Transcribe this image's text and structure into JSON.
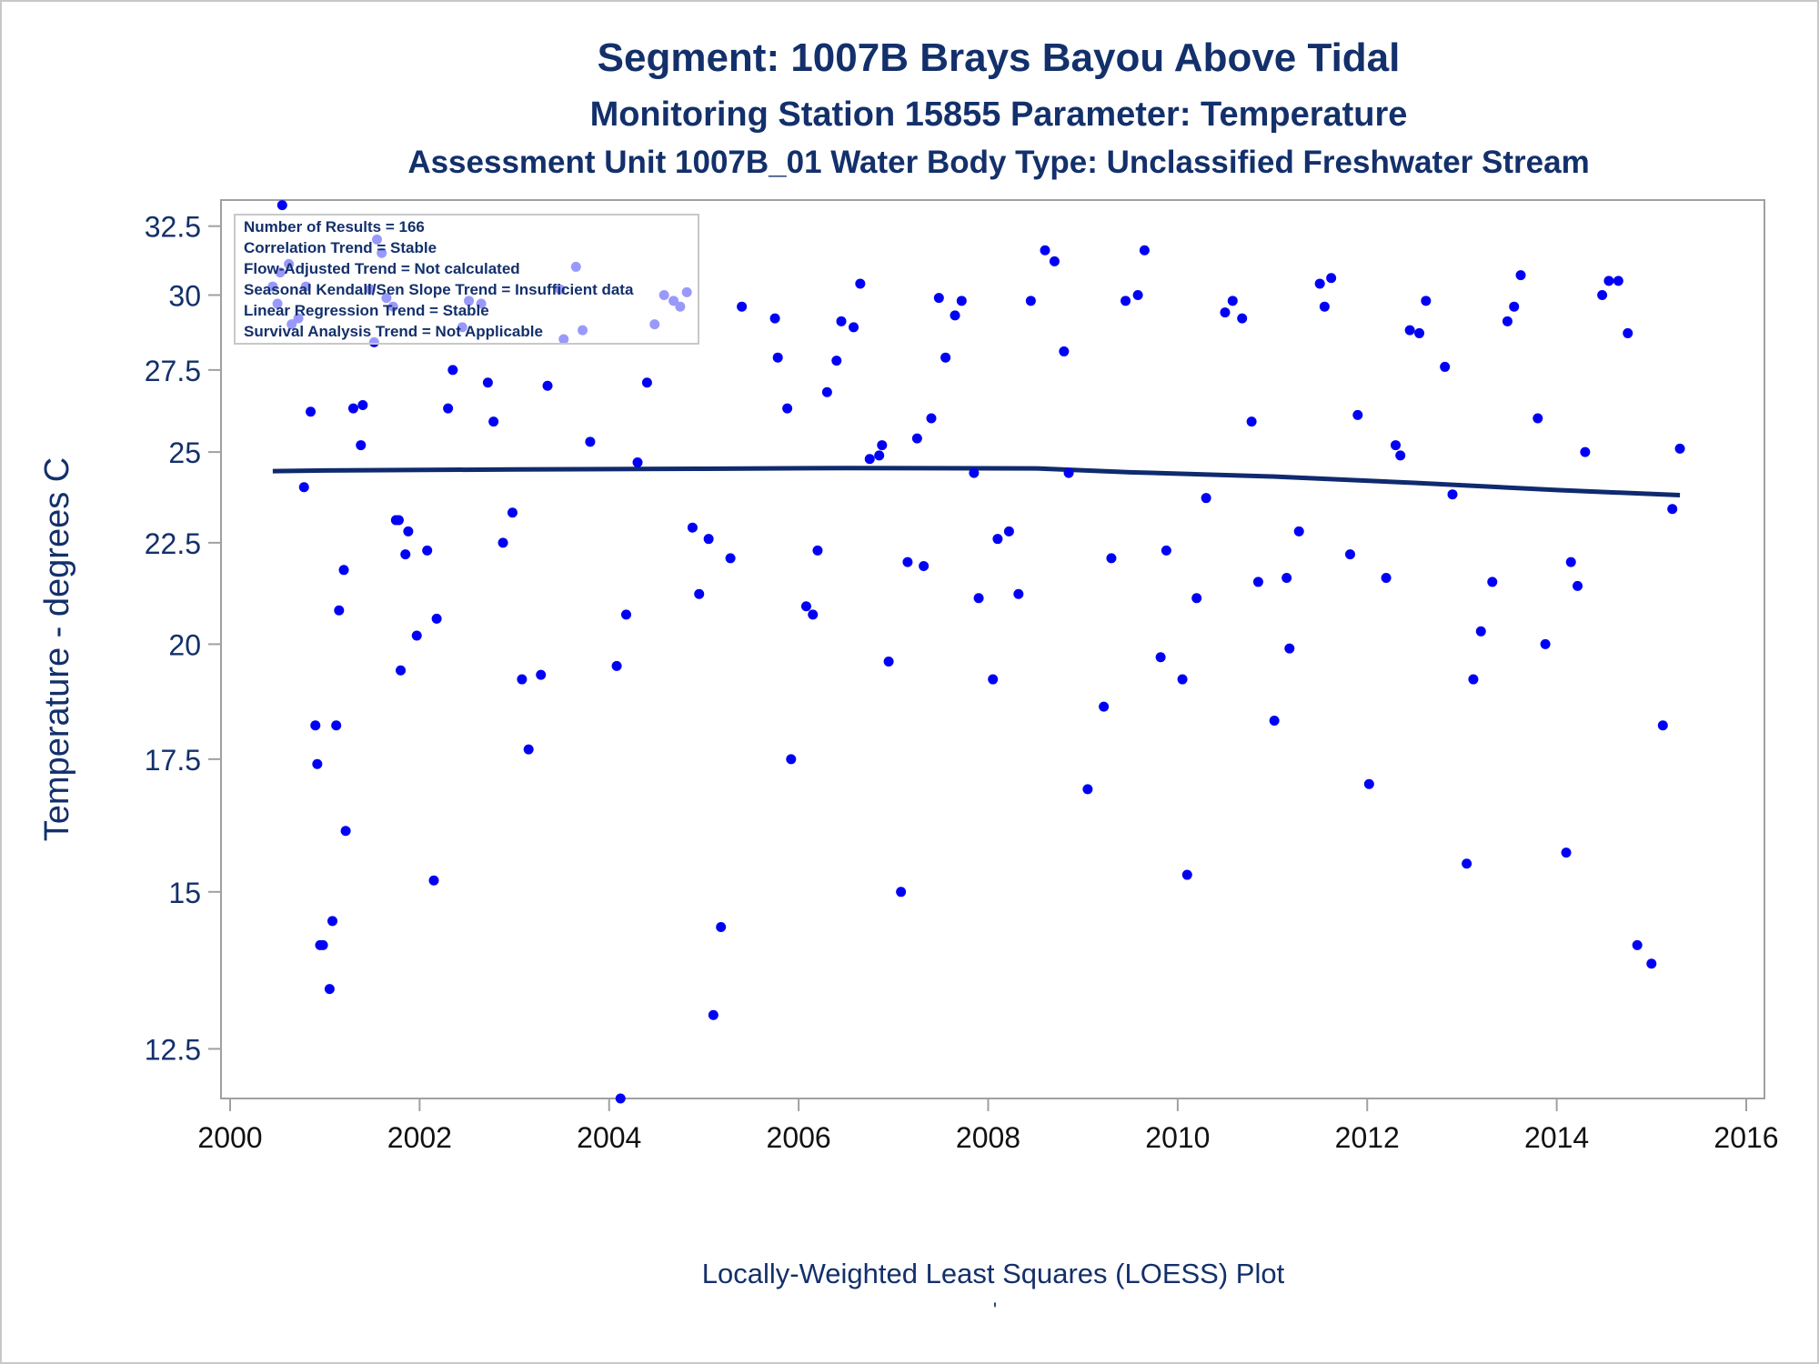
{
  "colors": {
    "title": "#13306b",
    "points": "#0000f5",
    "trend_line": "#0f2a6e",
    "axis": "#a0a0a0",
    "tick_label": "#13306b",
    "frame": "#c8c8c8"
  },
  "chart_data": {
    "type": "scatter",
    "title": "Segment: 1007B  Brays Bayou Above Tidal",
    "subtitle": "Monitoring Station 15855 Parameter: Temperature",
    "subtitle2": "Assessment Unit 1007B_01   Water Body Type: Unclassified Freshwater Stream",
    "xlabel": "",
    "ylabel": "Temperature - degrees C",
    "footnote": "Locally-Weighted Least Squares (LOESS) Plot",
    "footnote_mark": "'",
    "xlim": [
      2000,
      2016
    ],
    "ylim": [
      11.8,
      33.5
    ],
    "y_scale": "log",
    "xticks": [
      2000,
      2002,
      2004,
      2006,
      2008,
      2010,
      2012,
      2014,
      2016
    ],
    "yticks": [
      12.5,
      15,
      17.5,
      20,
      22.5,
      25,
      27.5,
      30,
      32.5
    ],
    "ytick_labels": [
      "12.5",
      "15",
      "17.5",
      "20",
      "22.5",
      "25",
      "27.5",
      "30",
      "32.5"
    ],
    "grid": false,
    "legend_placement": "top-left",
    "legend_lines": [
      "Number of Results = 166",
      "Correlation Trend = Stable",
      "Flow-Adjusted Trend = Not calculated",
      "Seasonal Kendall/Sen Slope Trend = Insufficient data",
      "Linear Regression Trend = Stable",
      "Survival Analysis Trend = Not Applicable"
    ],
    "series": [
      {
        "type": "scatter",
        "points": [
          [
            2000.45,
            30.3
          ],
          [
            2000.53,
            30.8
          ],
          [
            2000.55,
            33.3
          ],
          [
            2000.62,
            31.1
          ],
          [
            2000.5,
            29.7
          ],
          [
            2000.65,
            29.0
          ],
          [
            2000.72,
            29.2
          ],
          [
            2000.78,
            24.0
          ],
          [
            2000.8,
            30.3
          ],
          [
            2000.85,
            26.2
          ],
          [
            2000.9,
            18.2
          ],
          [
            2000.92,
            17.4
          ],
          [
            2000.95,
            14.1
          ],
          [
            2000.98,
            14.1
          ],
          [
            2001.05,
            13.4
          ],
          [
            2001.08,
            14.5
          ],
          [
            2001.12,
            18.2
          ],
          [
            2001.15,
            20.8
          ],
          [
            2001.2,
            21.8
          ],
          [
            2001.22,
            16.1
          ],
          [
            2001.3,
            26.3
          ],
          [
            2001.38,
            25.2
          ],
          [
            2001.4,
            26.4
          ],
          [
            2001.48,
            30.2
          ],
          [
            2001.52,
            28.4
          ],
          [
            2001.55,
            32.0
          ],
          [
            2001.6,
            31.5
          ],
          [
            2001.65,
            29.9
          ],
          [
            2001.72,
            29.6
          ],
          [
            2001.75,
            23.1
          ],
          [
            2001.78,
            23.1
          ],
          [
            2001.8,
            19.4
          ],
          [
            2001.85,
            22.2
          ],
          [
            2001.88,
            22.8
          ],
          [
            2001.97,
            20.2
          ],
          [
            2002.08,
            22.3
          ],
          [
            2002.15,
            15.2
          ],
          [
            2002.18,
            20.6
          ],
          [
            2002.3,
            26.3
          ],
          [
            2002.35,
            27.5
          ],
          [
            2002.45,
            28.9
          ],
          [
            2002.52,
            29.8
          ],
          [
            2002.65,
            29.7
          ],
          [
            2002.72,
            27.1
          ],
          [
            2002.78,
            25.9
          ],
          [
            2002.88,
            22.5
          ],
          [
            2002.98,
            23.3
          ],
          [
            2003.08,
            19.2
          ],
          [
            2003.15,
            17.7
          ],
          [
            2003.28,
            19.3
          ],
          [
            2003.35,
            27.0
          ],
          [
            2003.48,
            30.2
          ],
          [
            2003.52,
            28.5
          ],
          [
            2003.65,
            31.0
          ],
          [
            2003.72,
            28.8
          ],
          [
            2003.8,
            25.3
          ],
          [
            2004.08,
            19.5
          ],
          [
            2004.12,
            11.8
          ],
          [
            2004.18,
            20.7
          ],
          [
            2004.3,
            24.7
          ],
          [
            2004.4,
            27.1
          ],
          [
            2004.48,
            29.0
          ],
          [
            2004.58,
            30.0
          ],
          [
            2004.68,
            29.8
          ],
          [
            2004.75,
            29.6
          ],
          [
            2004.82,
            30.1
          ],
          [
            2004.88,
            22.9
          ],
          [
            2004.95,
            21.2
          ],
          [
            2005.05,
            22.6
          ],
          [
            2005.1,
            13.0
          ],
          [
            2005.18,
            14.4
          ],
          [
            2005.28,
            22.1
          ],
          [
            2005.4,
            29.6
          ],
          [
            2005.75,
            29.2
          ],
          [
            2005.78,
            27.9
          ],
          [
            2005.88,
            26.3
          ],
          [
            2005.92,
            17.5
          ],
          [
            2006.08,
            20.9
          ],
          [
            2006.15,
            20.7
          ],
          [
            2006.2,
            22.3
          ],
          [
            2006.3,
            26.8
          ],
          [
            2006.4,
            27.8
          ],
          [
            2006.45,
            29.1
          ],
          [
            2006.58,
            28.9
          ],
          [
            2006.65,
            30.4
          ],
          [
            2006.75,
            24.8
          ],
          [
            2006.85,
            24.9
          ],
          [
            2006.88,
            25.2
          ],
          [
            2006.95,
            19.6
          ],
          [
            2007.08,
            15.0
          ],
          [
            2007.15,
            22.0
          ],
          [
            2007.25,
            25.4
          ],
          [
            2007.32,
            21.9
          ],
          [
            2007.4,
            26.0
          ],
          [
            2007.48,
            29.9
          ],
          [
            2007.55,
            27.9
          ],
          [
            2007.65,
            29.3
          ],
          [
            2007.72,
            29.8
          ],
          [
            2007.85,
            24.4
          ],
          [
            2007.9,
            21.1
          ],
          [
            2008.05,
            19.2
          ],
          [
            2008.1,
            22.6
          ],
          [
            2008.22,
            22.8
          ],
          [
            2008.32,
            21.2
          ],
          [
            2008.45,
            29.8
          ],
          [
            2008.6,
            31.6
          ],
          [
            2008.7,
            31.2
          ],
          [
            2008.8,
            28.1
          ],
          [
            2008.85,
            24.4
          ],
          [
            2009.05,
            16.9
          ],
          [
            2009.22,
            18.6
          ],
          [
            2009.3,
            22.1
          ],
          [
            2009.45,
            29.8
          ],
          [
            2009.58,
            30.0
          ],
          [
            2009.65,
            31.6
          ],
          [
            2009.82,
            19.7
          ],
          [
            2009.88,
            22.3
          ],
          [
            2010.05,
            19.2
          ],
          [
            2010.1,
            15.3
          ],
          [
            2010.2,
            21.1
          ],
          [
            2010.3,
            23.7
          ],
          [
            2010.5,
            29.4
          ],
          [
            2010.58,
            29.8
          ],
          [
            2010.68,
            29.2
          ],
          [
            2010.78,
            25.9
          ],
          [
            2010.85,
            21.5
          ],
          [
            2011.02,
            18.3
          ],
          [
            2011.15,
            21.6
          ],
          [
            2011.18,
            19.9
          ],
          [
            2011.28,
            22.8
          ],
          [
            2011.5,
            30.4
          ],
          [
            2011.55,
            29.6
          ],
          [
            2011.62,
            30.6
          ],
          [
            2011.82,
            22.2
          ],
          [
            2011.9,
            26.1
          ],
          [
            2012.02,
            17.0
          ],
          [
            2012.2,
            21.6
          ],
          [
            2012.3,
            25.2
          ],
          [
            2012.35,
            24.9
          ],
          [
            2012.45,
            28.8
          ],
          [
            2012.55,
            28.7
          ],
          [
            2012.62,
            29.8
          ],
          [
            2012.82,
            27.6
          ],
          [
            2012.9,
            23.8
          ],
          [
            2013.05,
            15.5
          ],
          [
            2013.12,
            19.2
          ],
          [
            2013.2,
            20.3
          ],
          [
            2013.32,
            21.5
          ],
          [
            2013.48,
            29.1
          ],
          [
            2013.55,
            29.6
          ],
          [
            2013.62,
            30.7
          ],
          [
            2013.8,
            26.0
          ],
          [
            2013.88,
            20.0
          ],
          [
            2014.1,
            15.7
          ],
          [
            2014.15,
            22.0
          ],
          [
            2014.22,
            21.4
          ],
          [
            2014.3,
            25.0
          ],
          [
            2014.48,
            30.0
          ],
          [
            2014.55,
            30.5
          ],
          [
            2014.65,
            30.5
          ],
          [
            2014.75,
            28.7
          ],
          [
            2014.85,
            14.1
          ],
          [
            2015.0,
            13.8
          ],
          [
            2015.12,
            18.2
          ],
          [
            2015.22,
            23.4
          ],
          [
            2015.3,
            25.1
          ]
        ]
      },
      {
        "type": "line",
        "points": [
          [
            2000.45,
            24.45
          ],
          [
            2001.0,
            24.47
          ],
          [
            2003.0,
            24.5
          ],
          [
            2005.0,
            24.52
          ],
          [
            2006.5,
            24.54
          ],
          [
            2008.5,
            24.53
          ],
          [
            2009.5,
            24.42
          ],
          [
            2011.0,
            24.3
          ],
          [
            2012.5,
            24.12
          ],
          [
            2014.0,
            23.92
          ],
          [
            2015.3,
            23.78
          ]
        ]
      }
    ]
  }
}
